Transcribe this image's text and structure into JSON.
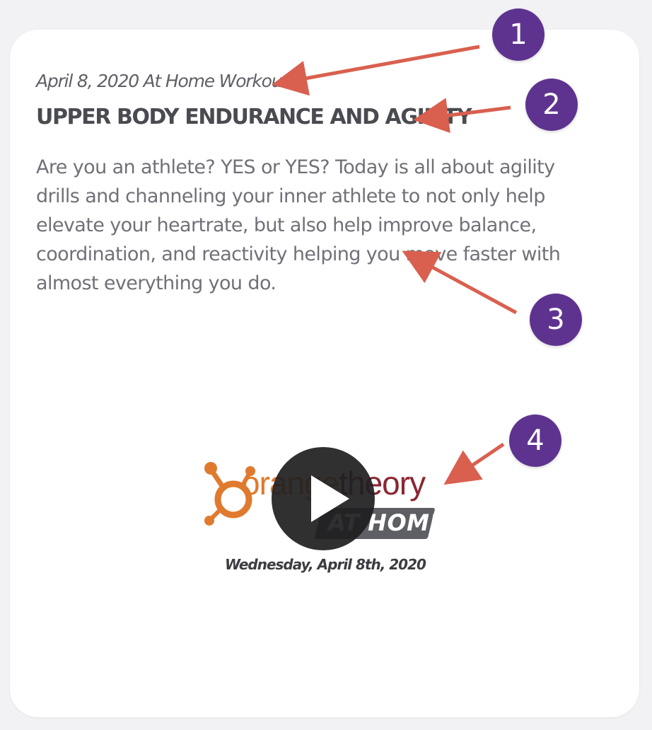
{
  "card": {
    "date_line": "April 8, 2020 At Home Workout",
    "title": "UPPER BODY ENDURANCE AND AGILITY",
    "description": "Are you an athlete? YES or YES? Today is all about agility drills and channeling your inner athlete to not only help elevate your heartrate, but also help improve balance, coordination, and reactivity helping you move faster with almost everything you do."
  },
  "video": {
    "logo_text_orange": "orange",
    "logo_text_theory": "theory",
    "logo_badge": "AT HOME",
    "trademark": "™",
    "date": "Wednesday, April 8th, 2020",
    "play_icon": "play-icon"
  },
  "annotations": [
    {
      "label": "1"
    },
    {
      "label": "2"
    },
    {
      "label": "3"
    },
    {
      "label": "4"
    }
  ],
  "colors": {
    "annotation_badge": "#5e3390",
    "annotation_arrow": "#d9604f",
    "brand_orange": "#e07a2e",
    "brand_theory": "#8a2732"
  }
}
